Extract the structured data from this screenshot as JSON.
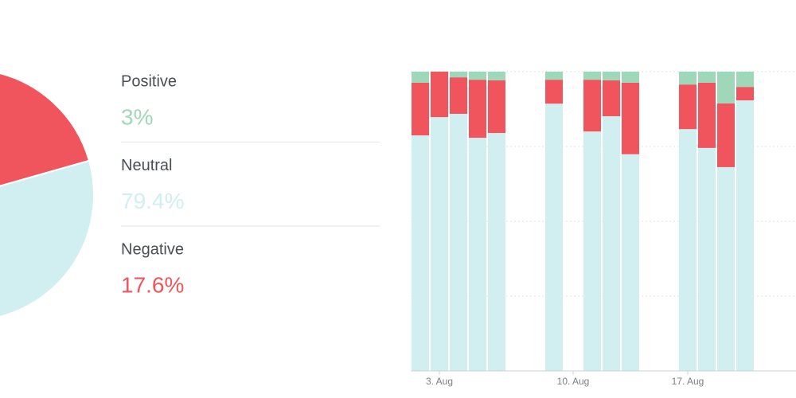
{
  "chart_data": [
    {
      "type": "pie",
      "categories": [
        "Positive",
        "Neutral",
        "Negative"
      ],
      "values": [
        3,
        79.4,
        17.6
      ],
      "value_labels": [
        "3%",
        "79.4%",
        "17.6%"
      ],
      "colors": [
        "#9fd8b9",
        "#d1eef0",
        "#f0545c"
      ]
    },
    {
      "type": "bar",
      "stacked": true,
      "categories": [
        null,
        "3. Aug",
        null,
        null,
        null,
        null,
        null,
        null,
        "10. Aug",
        null,
        null,
        null,
        null,
        null,
        "17. Aug",
        null,
        null,
        null,
        null,
        null
      ],
      "series": [
        {
          "color": "#d1eef0",
          "values": [
            78.7,
            84.8,
            85.9,
            77.9,
            79.5,
            null,
            null,
            89.3,
            null,
            80,
            85.1,
            72.4,
            null,
            null,
            80.8,
            74.5,
            68.1,
            90.4,
            null,
            null
          ]
        },
        {
          "color": "#f0545c",
          "values": [
            17.6,
            15.2,
            12.2,
            19.4,
            17.6,
            null,
            null,
            8,
            null,
            17.3,
            12,
            23.9,
            null,
            null,
            14.9,
            21.8,
            21.3,
            4.5,
            null,
            null
          ]
        },
        {
          "color": "#9fd8b9",
          "values": [
            3.7,
            0,
            1.9,
            2.7,
            2.9,
            null,
            null,
            2.7,
            null,
            2.7,
            2.9,
            3.7,
            null,
            null,
            4.3,
            3.7,
            10.6,
            5.1,
            null,
            null
          ]
        }
      ],
      "ylim": [
        0,
        100
      ],
      "yticks": [
        0,
        25,
        50,
        75,
        100
      ],
      "grid": true
    }
  ]
}
